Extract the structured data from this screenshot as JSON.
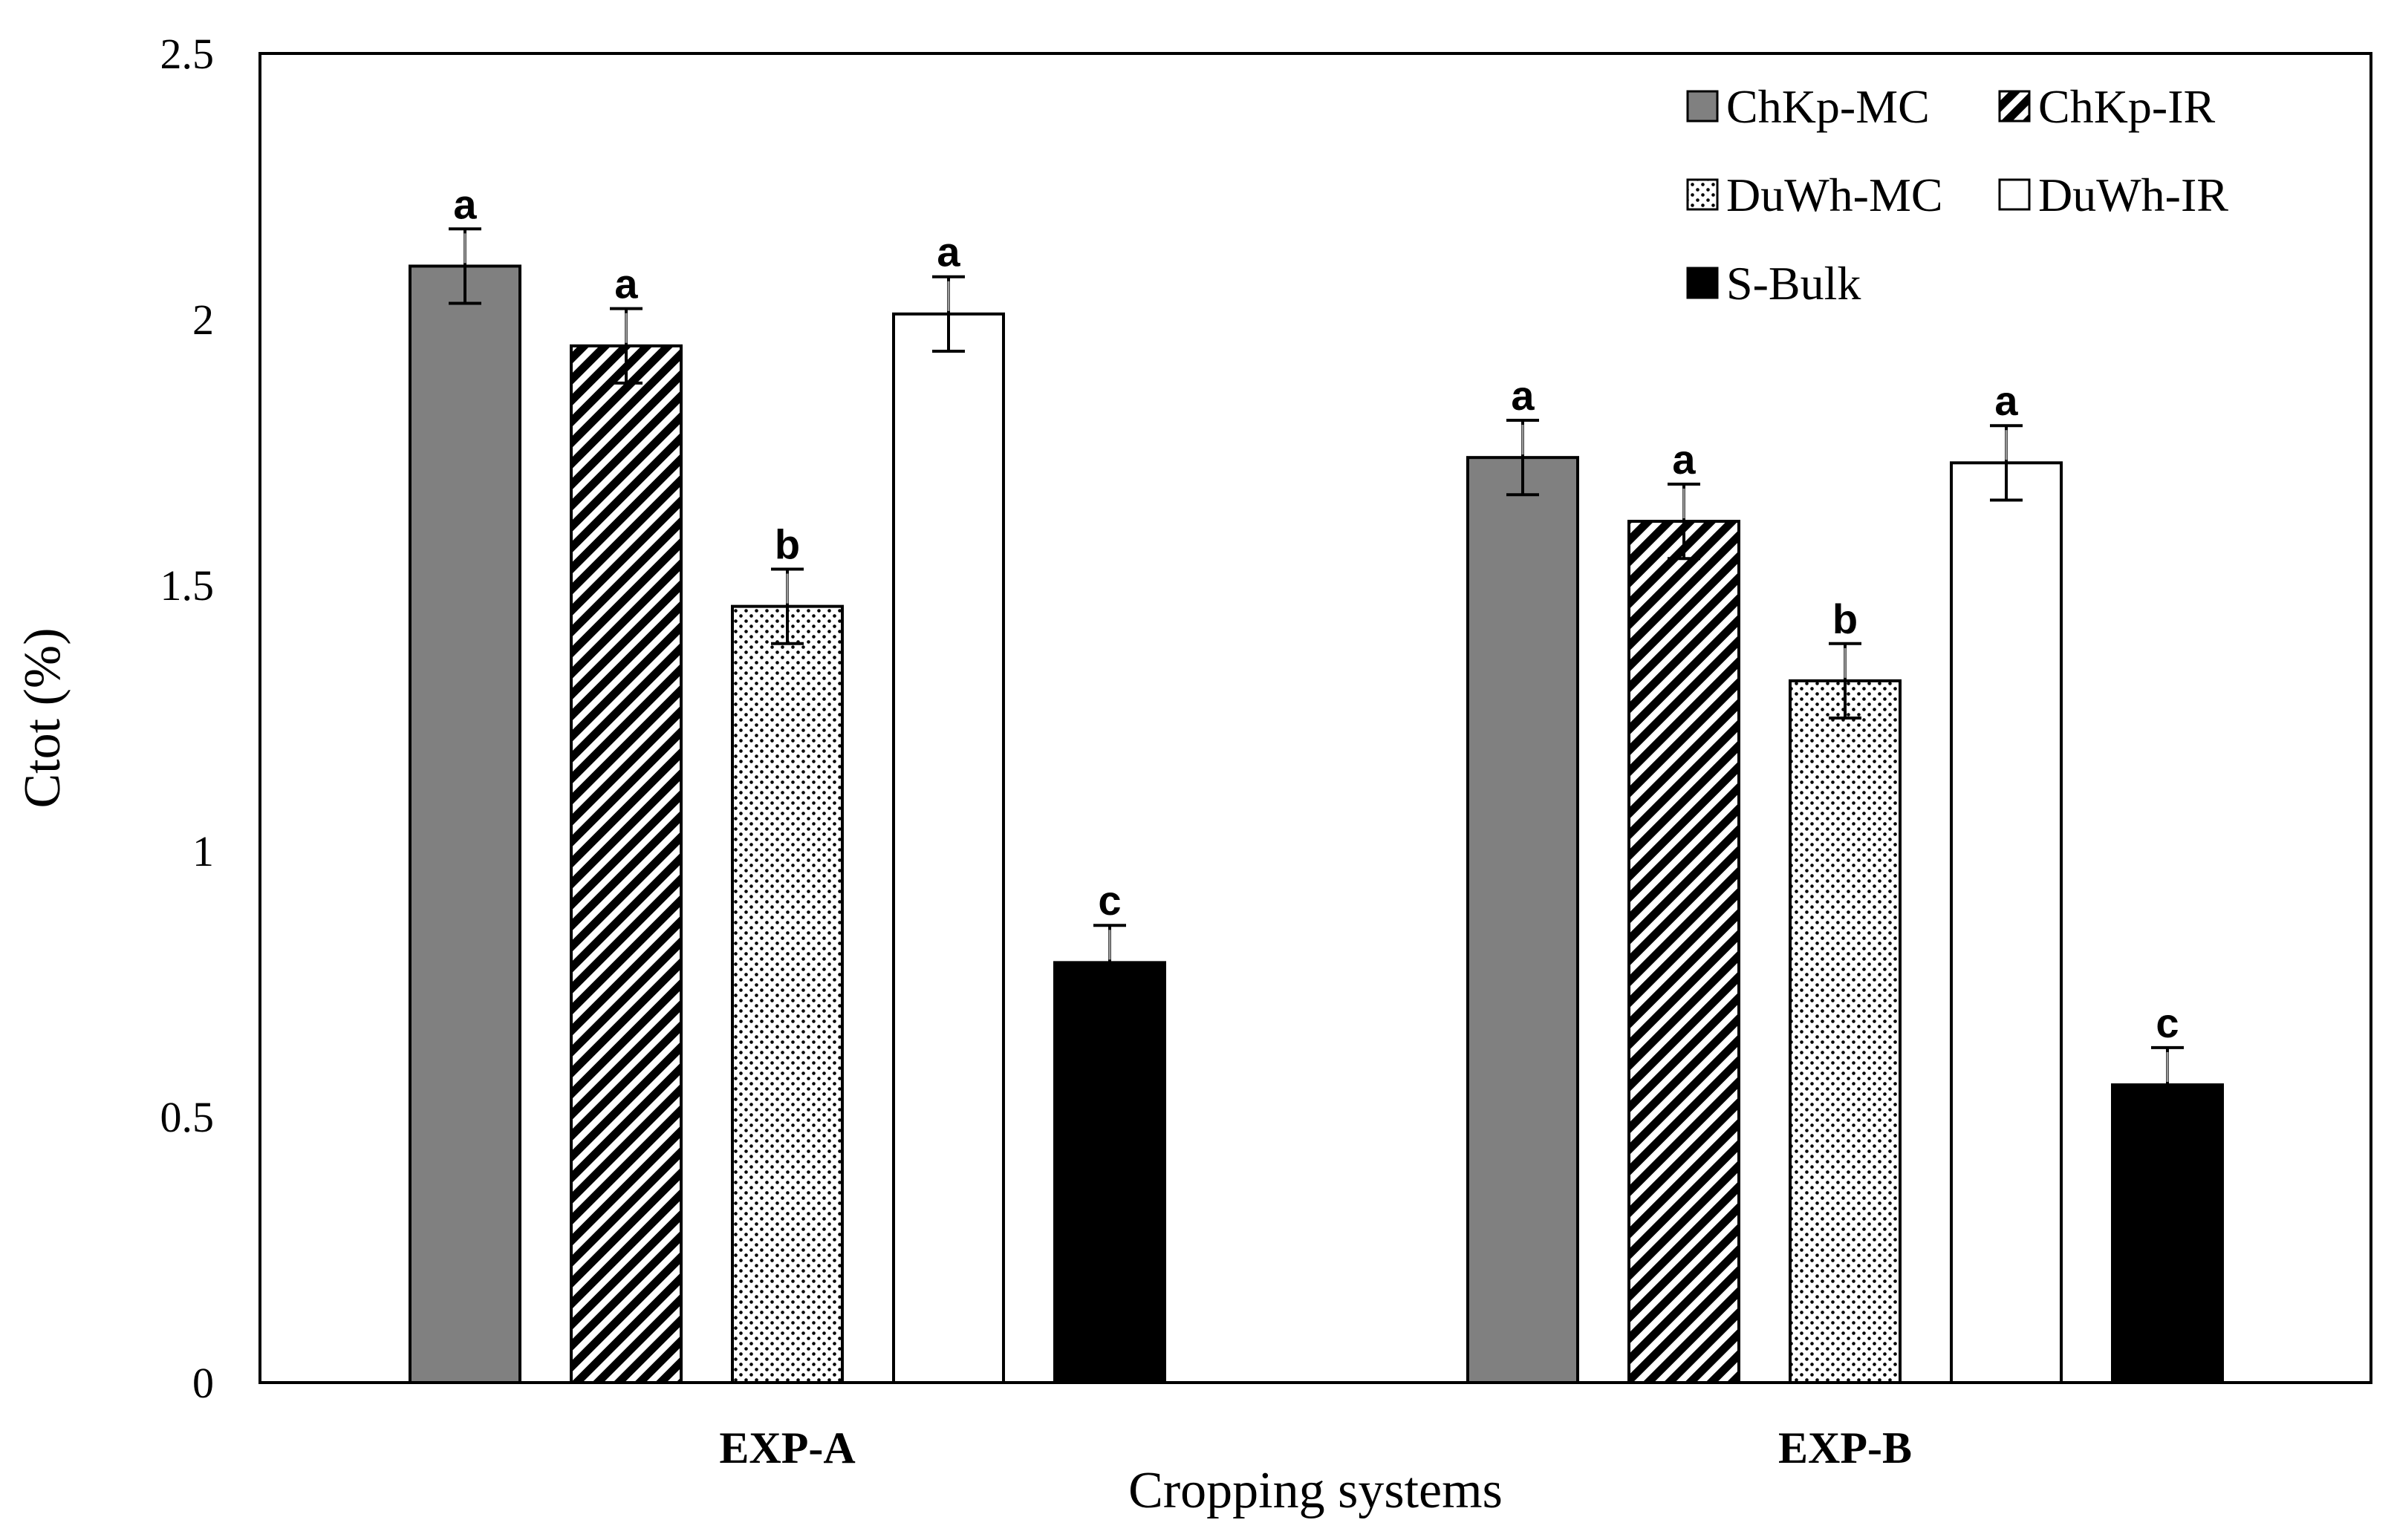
{
  "chart_data": {
    "type": "bar",
    "title": "",
    "xlabel": "Cropping systems",
    "ylabel": "Ctot (%)",
    "ylim": [
      0,
      2.5
    ],
    "yticks": [
      "0",
      "0.5",
      "1",
      "1.5",
      "2",
      "2.5"
    ],
    "grid": false,
    "legend_position": "top-right",
    "categories": [
      "EXP-A",
      "EXP-B"
    ],
    "series": [
      {
        "name": "ChKp-MC",
        "fill": "solid-gray",
        "values": [
          2.1,
          1.74
        ],
        "errors": [
          0.07,
          0.07
        ],
        "letters": [
          "a",
          "a"
        ]
      },
      {
        "name": "ChKp-IR",
        "fill": "diagonal-hatch",
        "values": [
          1.95,
          1.62
        ],
        "errors": [
          0.07,
          0.07
        ],
        "letters": [
          "a",
          "a"
        ]
      },
      {
        "name": "DuWh-MC",
        "fill": "dotted",
        "values": [
          1.46,
          1.32
        ],
        "errors": [
          0.07,
          0.07
        ],
        "letters": [
          "b",
          "b"
        ]
      },
      {
        "name": "DuWh-IR",
        "fill": "white",
        "values": [
          2.01,
          1.73
        ],
        "errors": [
          0.07,
          0.07
        ],
        "letters": [
          "a",
          "a"
        ]
      },
      {
        "name": "S-Bulk",
        "fill": "black",
        "values": [
          0.79,
          0.56
        ],
        "errors": [
          0.07,
          0.07
        ],
        "letters": [
          "c",
          "c"
        ]
      }
    ]
  },
  "colors": {
    "gray": "#808080",
    "black": "#000000",
    "white": "#ffffff",
    "errorbar_highlight": "#999999"
  }
}
